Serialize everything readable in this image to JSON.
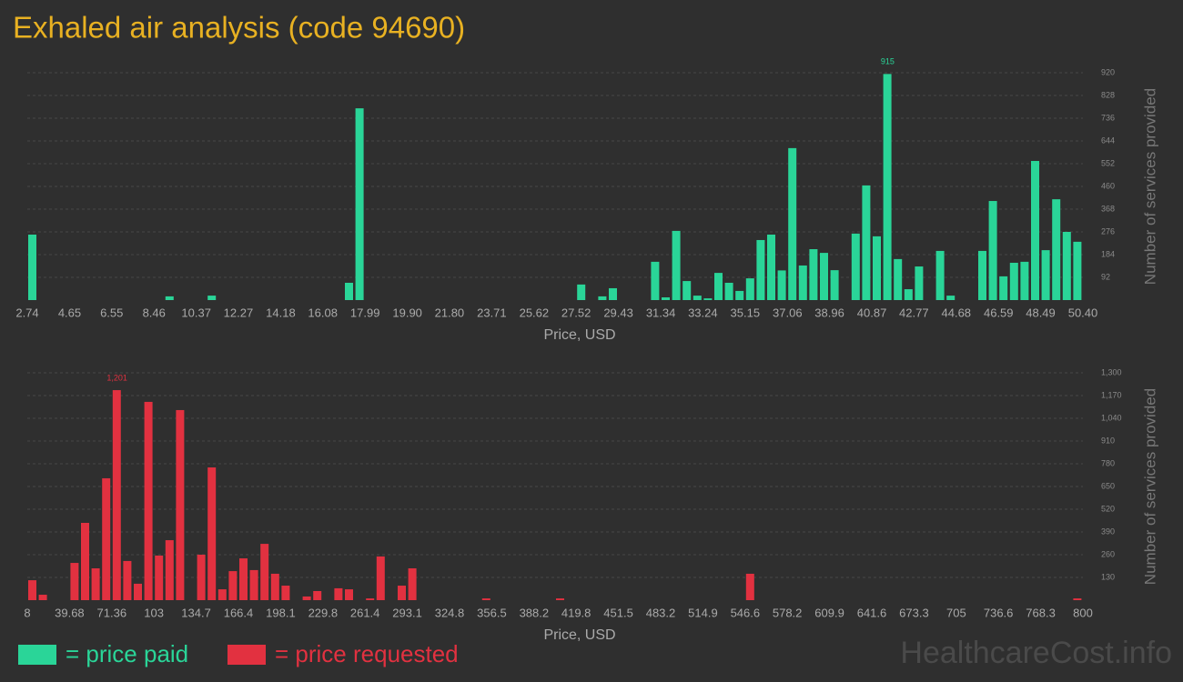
{
  "title": "Exhaled air analysis (code 94690)",
  "watermark": "HealthcareCost.info",
  "chart_data": [
    {
      "type": "histogram",
      "xlabel": "Price, USD",
      "ylabel": "Number of services provided",
      "xlim": [
        2.74,
        50.4
      ],
      "ylim": [
        0,
        920
      ],
      "xticks": [
        2.74,
        4.65,
        6.55,
        8.46,
        10.37,
        12.27,
        14.18,
        16.08,
        17.99,
        {
          "value": 19.9,
          "label": "19.90"
        },
        {
          "value": 21.8,
          "label": "21.80"
        },
        23.71,
        25.62,
        27.52,
        29.43,
        31.34,
        33.24,
        35.15,
        37.06,
        38.96,
        40.87,
        42.77,
        44.68,
        46.59,
        48.49,
        {
          "value": 50.4,
          "label": "50.40"
        }
      ],
      "yticks": [
        92,
        184,
        276,
        368,
        460,
        552,
        644,
        736,
        828,
        920
      ],
      "grid": true,
      "max_label": true,
      "bins": [
        2.74,
        3.2166,
        3.6932,
        4.1698,
        4.6464,
        5.123,
        5.5996,
        6.0762,
        6.5528,
        7.0294,
        7.506,
        7.9826,
        8.4592,
        8.9358,
        9.4124,
        9.889,
        10.3656,
        10.8422,
        11.3188,
        11.7954,
        12.272,
        12.7486,
        13.2252,
        13.7018,
        14.1784,
        14.655,
        15.1316,
        15.6082,
        16.0848,
        16.5614,
        17.038,
        17.5146,
        17.9912,
        18.4678,
        18.9444,
        19.421,
        19.8976,
        20.3742,
        20.8508,
        21.3274,
        21.804,
        22.2806,
        22.7572,
        23.2338,
        23.7104,
        24.187,
        24.6636,
        25.1402,
        25.6168,
        26.0934,
        26.57,
        27.0466,
        27.5232,
        27.9998,
        28.4764,
        28.953,
        29.4296,
        29.9062,
        30.3828,
        30.8594,
        31.336,
        31.8126,
        32.2892,
        32.7658,
        33.2424,
        33.719,
        34.1956,
        34.6722,
        35.1488,
        35.6254,
        36.102,
        36.5786,
        37.0552,
        37.5318,
        38.0084,
        38.485,
        38.9616,
        39.4382,
        39.9148,
        40.3914,
        40.868,
        41.3446,
        41.8212,
        42.2978,
        42.7744,
        43.251,
        43.7276,
        44.2042,
        44.6808,
        45.1574,
        45.634,
        46.1106,
        46.5872,
        47.0638,
        47.5404,
        48.017,
        48.4936,
        48.9702,
        49.4468,
        49.9234,
        50.4
      ],
      "series": [
        {
          "name": "= price paid",
          "color": "#2ad598",
          "values": [
            265,
            0,
            0,
            0,
            0,
            0,
            0,
            0,
            0,
            0,
            0,
            0,
            0,
            15,
            0,
            0,
            0,
            18,
            0,
            0,
            0,
            0,
            0,
            0,
            0,
            0,
            0,
            0,
            0,
            0,
            70,
            776,
            0,
            0,
            0,
            0,
            0,
            0,
            0,
            0,
            0,
            0,
            0,
            0,
            0,
            0,
            0,
            0,
            0,
            0,
            0,
            0,
            63,
            0,
            15,
            48,
            0,
            0,
            0,
            155,
            11,
            280,
            77,
            18,
            7,
            110,
            70,
            37,
            88,
            243,
            265,
            120,
            615,
            140,
            206,
            191,
            121,
            0,
            269,
            464,
            258,
            915,
            166,
            44,
            136,
            0,
            199,
            18,
            0,
            0,
            199,
            401,
            96,
            151,
            155,
            563,
            202,
            408,
            276,
            236
          ]
        }
      ]
    },
    {
      "type": "histogram",
      "xlabel": "Price, USD",
      "ylabel": "Number of services provided",
      "xlim": [
        8,
        800
      ],
      "ylim": [
        0,
        1300
      ],
      "xticks": [
        8,
        39.68,
        71.36,
        103,
        134.7,
        166.4,
        198.1,
        229.8,
        261.4,
        293.1,
        324.8,
        356.5,
        388.2,
        419.8,
        451.5,
        483.2,
        514.9,
        546.6,
        578.2,
        609.9,
        641.6,
        673.3,
        705,
        736.6,
        768.3,
        800
      ],
      "yticks": [
        130,
        260,
        390,
        520,
        650,
        780,
        910,
        {
          "value": 1040,
          "label": "1,040"
        },
        {
          "value": 1170,
          "label": "1,170"
        },
        {
          "value": 1300,
          "label": "1,300"
        }
      ],
      "grid": true,
      "max_label": true,
      "bins": [
        8,
        15.92,
        23.84,
        31.76,
        39.68,
        47.6,
        55.52,
        63.44,
        71.36,
        79.28,
        87.2,
        95.12,
        103.04,
        110.96,
        118.88,
        126.8,
        134.72,
        142.64,
        150.56,
        158.48,
        166.4,
        174.32,
        182.24,
        190.16,
        198.08,
        206,
        213.92,
        221.84,
        229.76,
        237.68,
        245.6,
        253.52,
        261.44,
        269.36,
        277.28,
        285.2,
        293.12,
        301.04,
        308.96,
        316.88,
        324.8,
        332.72,
        340.64,
        348.56,
        356.48,
        364.4,
        372.32,
        380.24,
        388.16,
        396.08,
        404,
        411.92,
        419.84,
        427.76,
        435.68,
        443.6,
        451.52,
        459.44,
        467.36,
        475.28,
        483.2,
        491.12,
        499.04,
        506.96,
        514.88,
        522.8,
        530.72,
        538.64,
        546.56,
        554.48,
        562.4,
        570.32,
        578.24,
        586.16,
        594.08,
        602,
        609.92,
        617.84,
        625.76,
        633.68,
        641.6,
        649.52,
        657.44,
        665.36,
        673.28,
        681.2,
        689.12,
        697.04,
        704.96,
        712.88,
        720.8,
        728.72,
        736.64,
        744.56,
        752.48,
        760.4,
        768.32,
        776.24,
        784.16,
        792.08,
        800
      ],
      "series": [
        {
          "name": "= price requested",
          "color": "#e23140",
          "values": [
            114,
            31,
            0,
            0,
            213,
            442,
            182,
            697,
            1201,
            224,
            94,
            1134,
            255,
            343,
            1087,
            0,
            260,
            759,
            62,
            166,
            239,
            172,
            322,
            151,
            83,
            0,
            21,
            52,
            0,
            68,
            62,
            0,
            10,
            250,
            0,
            83,
            182,
            0,
            0,
            0,
            0,
            0,
            0,
            10,
            0,
            0,
            0,
            0,
            0,
            0,
            10,
            0,
            0,
            0,
            0,
            0,
            0,
            0,
            0,
            0,
            0,
            0,
            0,
            0,
            0,
            0,
            0,
            0,
            151,
            0,
            0,
            0,
            0,
            0,
            0,
            0,
            0,
            0,
            0,
            0,
            0,
            0,
            0,
            0,
            0,
            0,
            0,
            0,
            0,
            0,
            0,
            0,
            0,
            0,
            0,
            0,
            0,
            0,
            0,
            10
          ],
          "value_labels": [
            null,
            null,
            null,
            null,
            null,
            null,
            null,
            null,
            "1,201",
            null,
            null,
            null,
            null,
            null,
            null,
            null,
            null,
            null,
            null,
            null,
            null,
            null,
            null,
            null,
            null,
            null,
            null,
            null,
            null,
            null,
            null,
            null,
            null,
            null,
            null,
            null,
            null,
            null,
            null,
            null,
            null,
            null,
            null,
            null,
            null,
            null,
            null,
            null,
            null,
            null,
            null,
            null,
            null,
            null,
            null,
            null,
            null,
            null,
            null,
            null,
            null,
            null,
            null,
            null,
            null,
            null,
            null,
            null,
            null,
            null,
            null,
            null,
            null,
            null,
            null,
            null,
            null,
            null,
            null,
            null,
            null,
            null,
            null,
            null,
            null,
            null,
            null,
            null,
            null,
            null,
            null,
            null,
            null,
            null,
            null,
            null,
            null,
            null,
            null,
            null
          ]
        }
      ]
    }
  ]
}
